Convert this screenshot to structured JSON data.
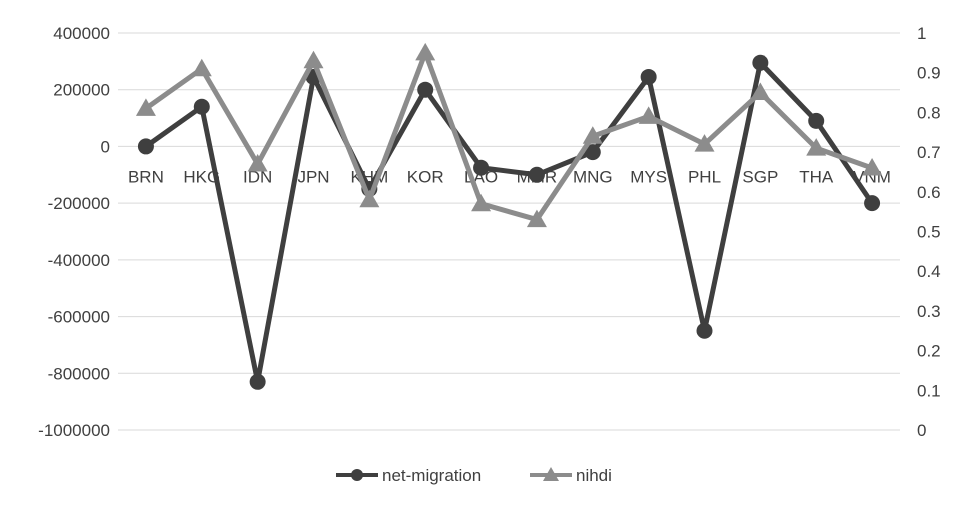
{
  "chart_data": {
    "type": "line",
    "categories": [
      "BRN",
      "HKG",
      "IDN",
      "JPN",
      "KHM",
      "KOR",
      "LAO",
      "MMR",
      "MNG",
      "MYS",
      "PHL",
      "SGP",
      "THA",
      "VNM"
    ],
    "y_left": {
      "min": -1000000,
      "max": 400000,
      "step": 200000,
      "ticks": [
        "400000",
        "200000",
        "0",
        "-200000",
        "-400000",
        "-600000",
        "-800000",
        "-1000000"
      ]
    },
    "y_right": {
      "min": 0,
      "max": 1,
      "step": 0.1,
      "ticks": [
        "1",
        "0.9",
        "0.8",
        "0.7",
        "0.6",
        "0.5",
        "0.4",
        "0.3",
        "0.2",
        "0.1",
        "0"
      ]
    },
    "grid": true,
    "legend_position": "bottom",
    "series": [
      {
        "name": "net-migration",
        "axis": "left",
        "marker": "circle",
        "color": "#3f3f3f",
        "values": [
          0,
          140000,
          -830000,
          245000,
          -150000,
          200000,
          -75000,
          -100000,
          -20000,
          245000,
          -650000,
          295000,
          90000,
          -200000
        ]
      },
      {
        "name": "nihdi",
        "axis": "right",
        "marker": "triangle",
        "color": "#8c8c8c",
        "values": [
          0.81,
          0.91,
          0.67,
          0.93,
          0.58,
          0.95,
          0.57,
          0.53,
          0.74,
          0.79,
          0.72,
          0.85,
          0.71,
          0.66
        ]
      }
    ]
  }
}
